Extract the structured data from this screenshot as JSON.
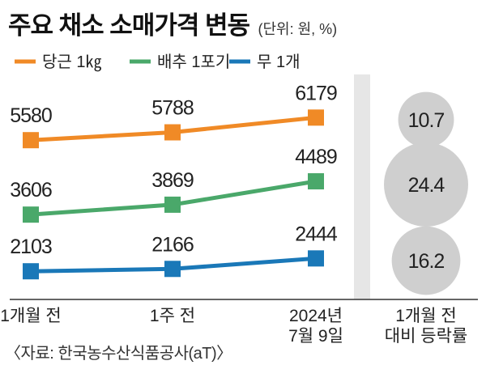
{
  "header": {
    "title": "주요 채소 소매가격 변동",
    "unit": "(단위: 원, %)"
  },
  "source": "〈자료: 한국농수산식품공사(aT)〉",
  "change_label": [
    "1개월 전",
    "대비 등락률"
  ],
  "colors": {
    "carrot": "#f08a26",
    "cabbage": "#4aa86a",
    "radish": "#1a78b8",
    "bubble": "#cfcfcf",
    "divider": "#e6e6e6"
  },
  "chart_data": {
    "type": "line",
    "categories": [
      "1개월 전",
      "1주 전",
      "2024년 7월 9일"
    ],
    "category_lines": [
      [
        "1개월 전"
      ],
      [
        "1주 전"
      ],
      [
        "2024년",
        "7월 9일"
      ]
    ],
    "series": [
      {
        "name": "당근 1㎏",
        "values": [
          5580,
          5788,
          6179
        ],
        "change_pct": 10.7,
        "color": "#f08a26"
      },
      {
        "name": "배추 1포기",
        "values": [
          3606,
          3869,
          4489
        ],
        "change_pct": 24.4,
        "color": "#4aa86a"
      },
      {
        "name": "무 1개",
        "values": [
          2103,
          2166,
          2444
        ],
        "change_pct": 16.2,
        "color": "#1a78b8"
      }
    ]
  }
}
